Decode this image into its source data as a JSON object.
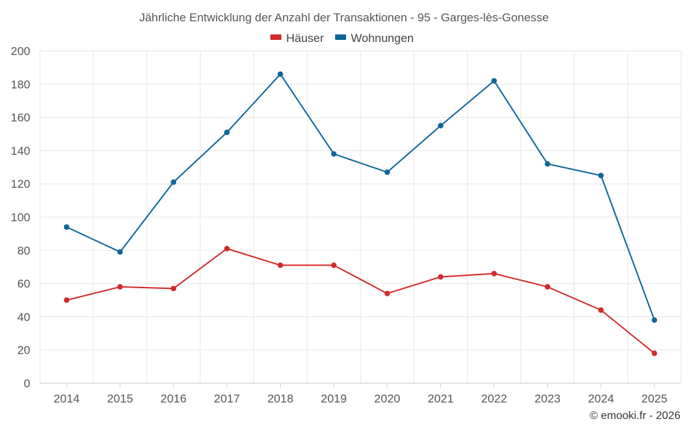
{
  "chart_data": {
    "type": "line",
    "title": "Jährliche Entwicklung der Anzahl der Transaktionen - 95 - Garges-lès-Gonesse",
    "categories": [
      "2014",
      "2015",
      "2016",
      "2017",
      "2018",
      "2019",
      "2020",
      "2021",
      "2022",
      "2023",
      "2024",
      "2025"
    ],
    "ylim": [
      0,
      200
    ],
    "yticks": [
      0,
      20,
      40,
      60,
      80,
      100,
      120,
      140,
      160,
      180,
      200
    ],
    "grid": true,
    "legend_position": "top-center",
    "series": [
      {
        "name": "Häuser",
        "color": "#d42a2a",
        "values": [
          50,
          58,
          57,
          81,
          71,
          71,
          54,
          64,
          66,
          58,
          44,
          18
        ]
      },
      {
        "name": "Wohnungen",
        "color": "#0e6699",
        "values": [
          94,
          79,
          121,
          151,
          186,
          138,
          127,
          155,
          182,
          132,
          125,
          38
        ]
      }
    ],
    "credit": "© emooki.fr - 2026"
  }
}
